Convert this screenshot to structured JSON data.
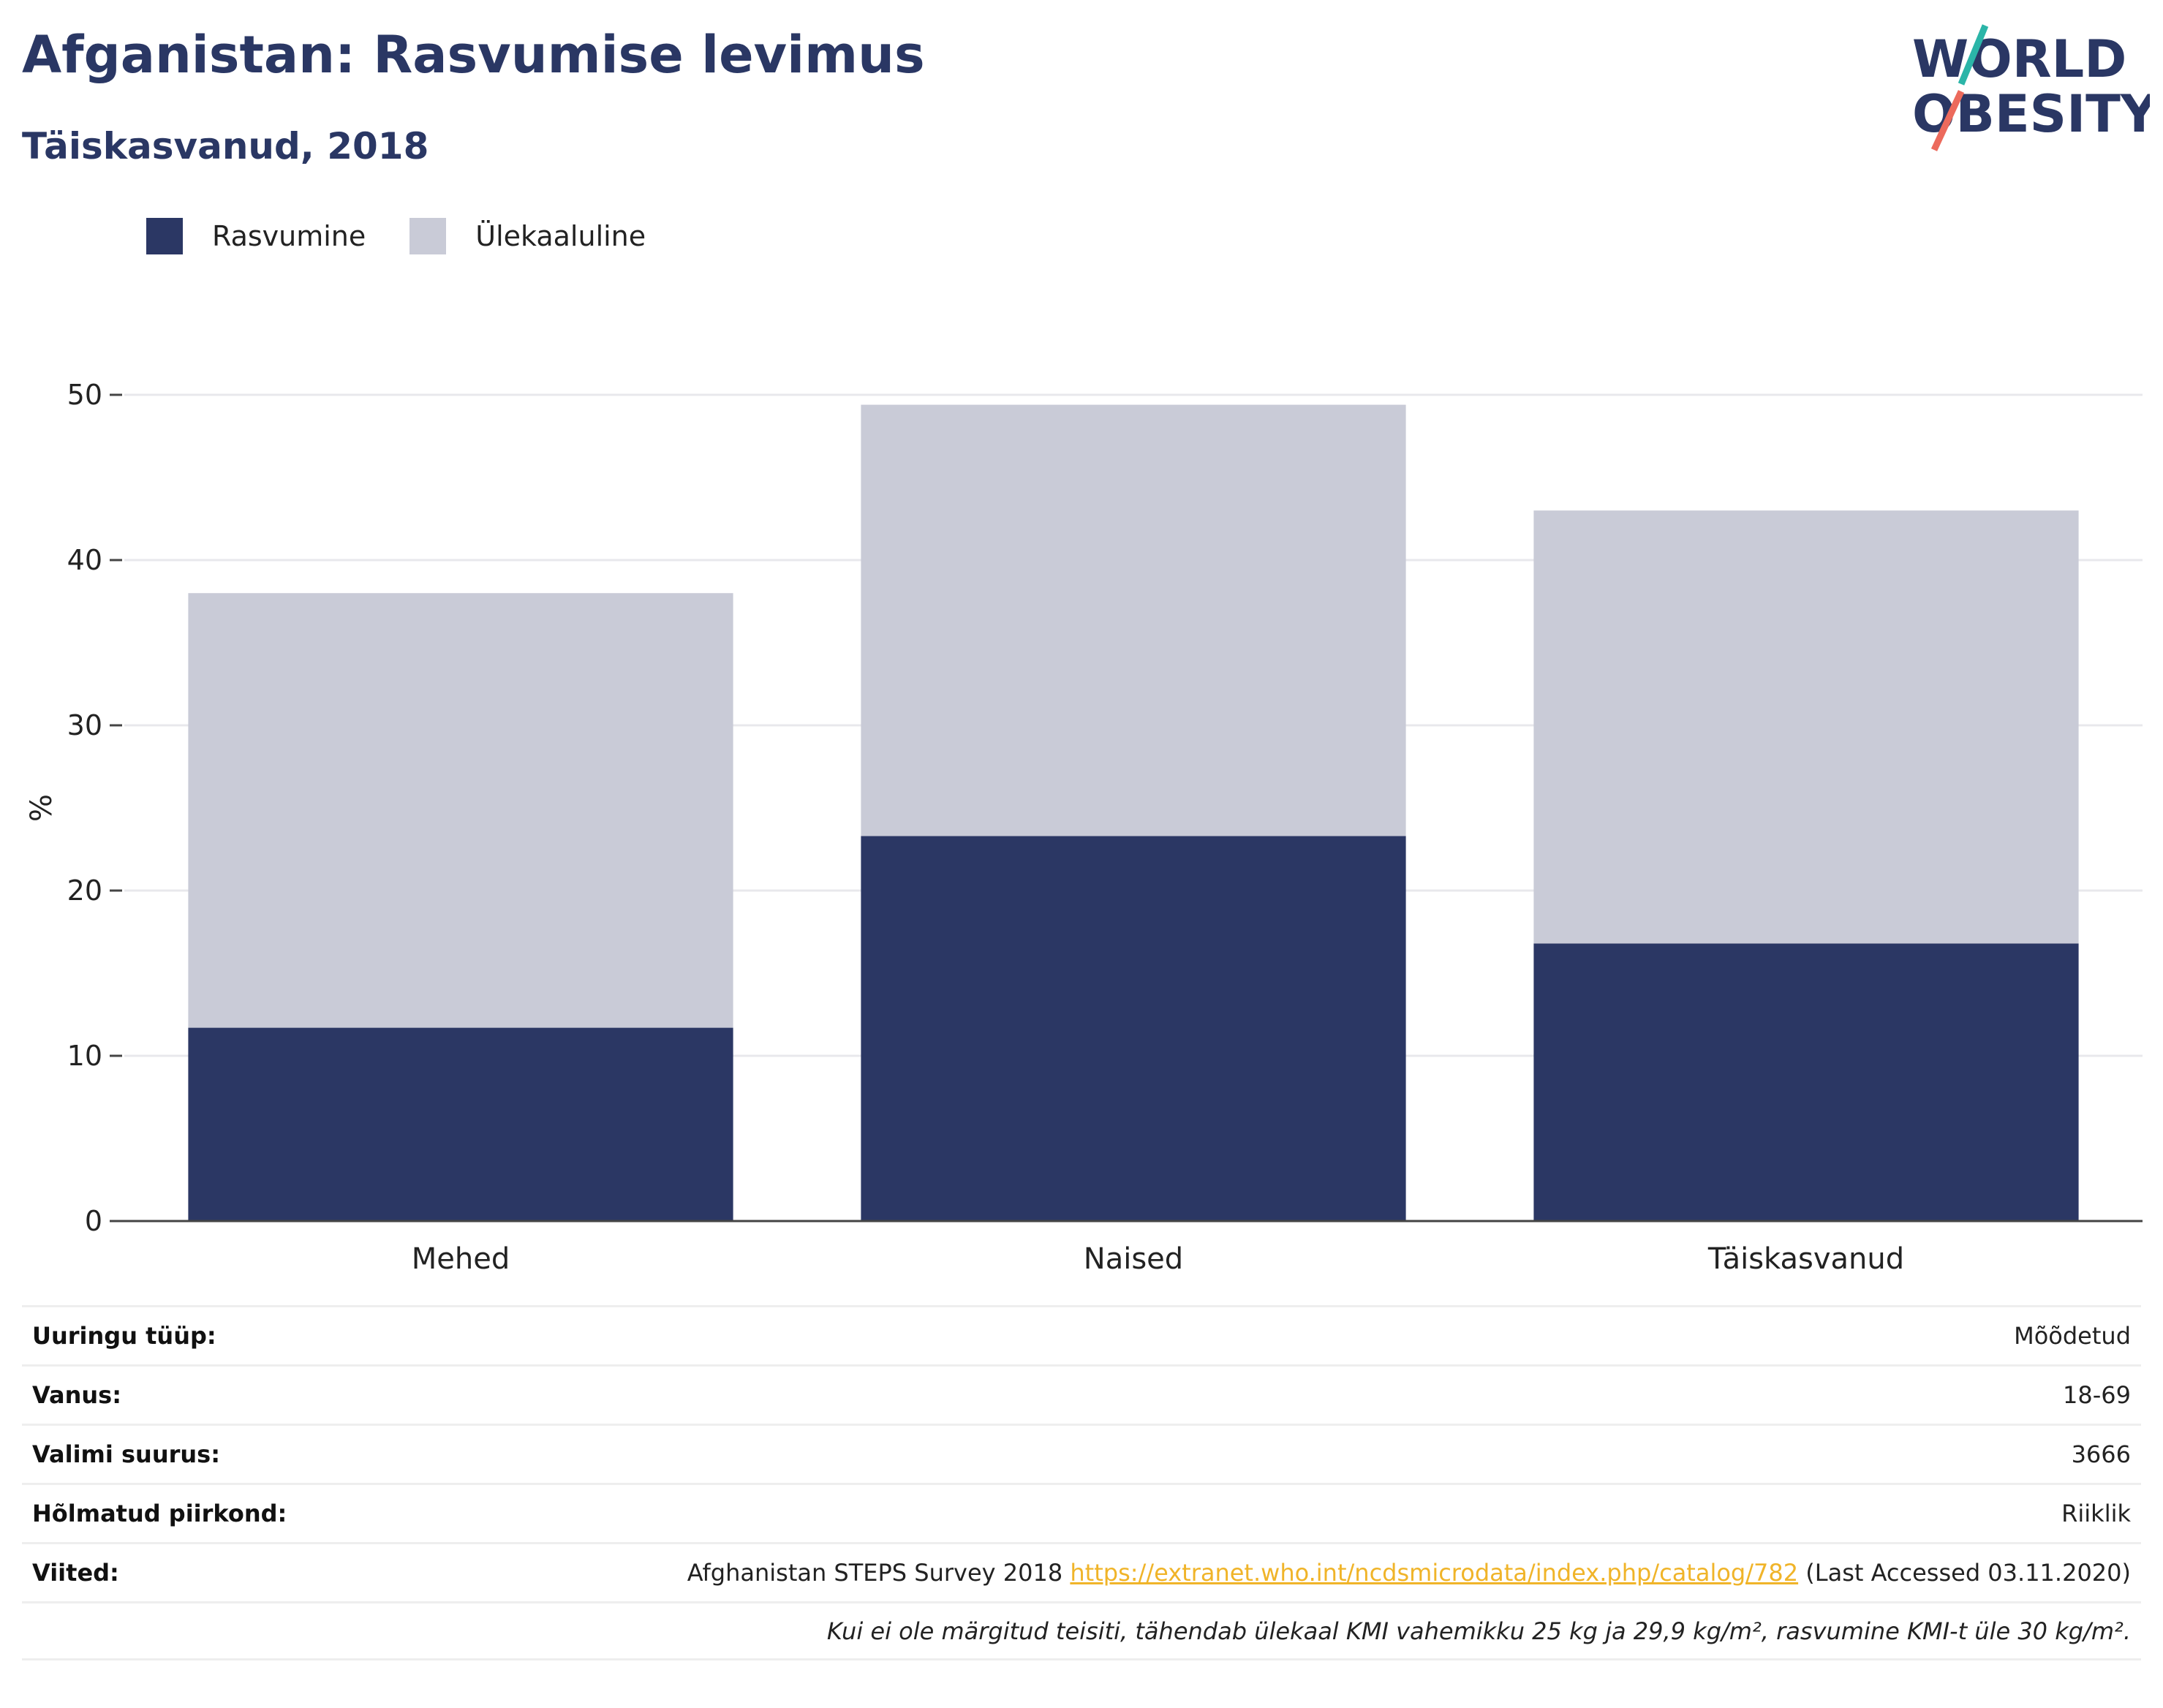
{
  "title": "Afganistan: Rasvumise levimus",
  "subtitle": "Täiskasvanud, 2018",
  "logo": {
    "line1": "WORLD",
    "line2": "OBESITY"
  },
  "colors": {
    "obesity": "#2b3764",
    "overweight": "#c9cbd7",
    "title": "#2a3764",
    "link": "#f0b429",
    "logo_teal": "#2bb5a8",
    "logo_coral": "#ec6a5c"
  },
  "chart_data": {
    "type": "bar",
    "stacked": true,
    "categories": [
      "Mehed",
      "Naised",
      "Täiskasvanud"
    ],
    "series": [
      {
        "name": "Rasvumine",
        "values": [
          11.7,
          23.3,
          16.8
        ]
      },
      {
        "name": "Ülekaaluline",
        "values": [
          26.3,
          26.1,
          26.2
        ]
      }
    ],
    "ylabel": "%",
    "ylim": [
      0,
      50
    ],
    "yticks": [
      0,
      10,
      20,
      30,
      40,
      50
    ],
    "grid": true,
    "legend_position": "top-left"
  },
  "info": {
    "survey_type": {
      "label": "Uuringu tüüp:",
      "value": "Mõõdetud"
    },
    "age": {
      "label": "Vanus:",
      "value": "18-69"
    },
    "sample_size": {
      "label": "Valimi suurus:",
      "value": "3666"
    },
    "region": {
      "label": "Hõlmatud piirkond:",
      "value": "Riiklik"
    },
    "references": {
      "label": "Viited:",
      "prefix": "Afghanistan STEPS Survey 2018 ",
      "link": "https://extranet.who.int/ncdsmicrodata/index.php/catalog/782",
      "suffix": " (Last Accessed 03.11.2020)"
    },
    "note": "Kui ei ole märgitud teisiti, tähendab ülekaal KMI vahemikku 25 kg ja 29,9 kg/m², rasvumine KMI-t üle 30 kg/m²."
  }
}
